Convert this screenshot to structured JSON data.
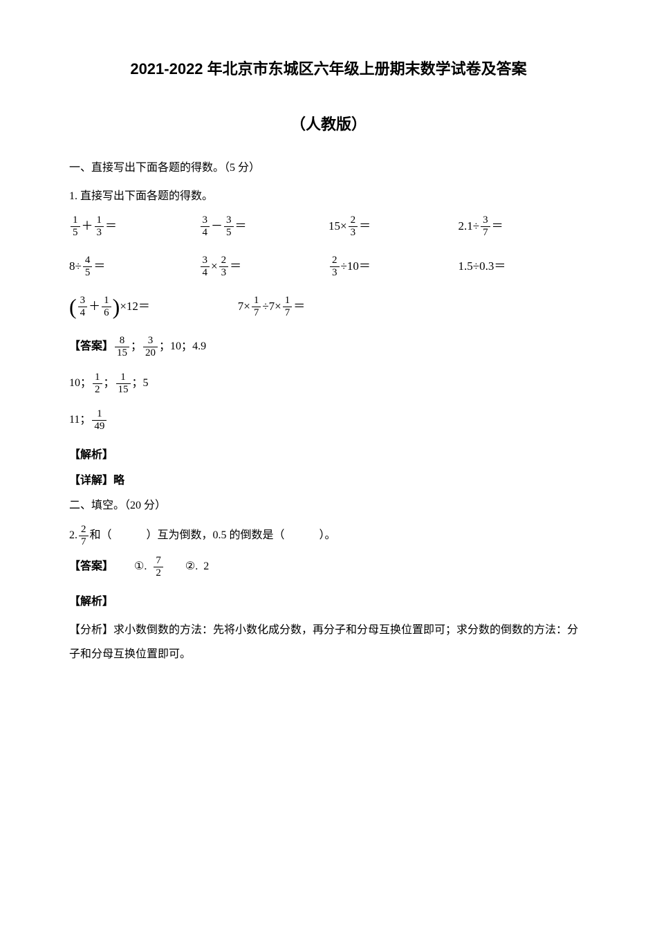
{
  "title": "2021-2022 年北京市东城区六年级上册期末数学试卷及答案",
  "subtitle": "（人教版）",
  "section1": {
    "header": "一、直接写出下面各题的得数。（5 分）",
    "q1": "1. 直接写出下面各题的得数。"
  },
  "equations": {
    "row1": {
      "e1": {
        "f1n": "1",
        "f1d": "5",
        "op": "＋",
        "f2n": "1",
        "f2d": "3",
        "eq": "＝"
      },
      "e2": {
        "f1n": "3",
        "f1d": "4",
        "op": "－",
        "f2n": "3",
        "f2d": "5",
        "eq": "＝"
      },
      "e3": {
        "pre": "15×",
        "f1n": "2",
        "f1d": "3",
        "eq": "＝"
      },
      "e4": {
        "pre": "2.1÷",
        "f1n": "3",
        "f1d": "7",
        "eq": "＝"
      }
    },
    "row2": {
      "e1": {
        "pre": "8÷",
        "f1n": "4",
        "f1d": "5",
        "eq": "＝"
      },
      "e2": {
        "f1n": "3",
        "f1d": "4",
        "op": "×",
        "f2n": "2",
        "f2d": "3",
        "eq": "＝"
      },
      "e3": {
        "f1n": "2",
        "f1d": "3",
        "post": "÷10＝"
      },
      "e4": {
        "text": "1.5÷0.3＝"
      }
    },
    "row3": {
      "e1": {
        "f1n": "3",
        "f1d": "4",
        "op": "＋",
        "f2n": "1",
        "f2d": "6",
        "post": "×12＝"
      },
      "e2": {
        "pre": "7×",
        "f1n": "1",
        "f1d": "7",
        "mid": "÷7×",
        "f2n": "1",
        "f2d": "7",
        "eq": "＝"
      }
    }
  },
  "answers": {
    "label": "【答案】",
    "line1": {
      "f1n": "8",
      "f1d": "15",
      "sep1": "；",
      "f2n": "3",
      "f2d": "20",
      "sep2": "；",
      "v3": "10",
      "sep3": "；",
      "v4": "4.9"
    },
    "line2": {
      "v1": "10",
      "sep1": "；",
      "f1n": "1",
      "f1d": "2",
      "sep2": "；",
      "f2n": "1",
      "f2d": "15",
      "sep3": "；",
      "v4": "5"
    },
    "line3": {
      "v1": "11",
      "sep1": "；",
      "f1n": "1",
      "f1d": "49"
    }
  },
  "analysis": {
    "label": "【解析】",
    "detail": "【详解】略"
  },
  "section2": {
    "header": "二、填空。（20 分）",
    "q2_pre": "2. ",
    "q2_f1n": "2",
    "q2_f1d": "7",
    "q2_mid1": "和（",
    "q2_mid2": "）互为倒数，0.5 的倒数是（",
    "q2_end": "）。"
  },
  "answer2": {
    "label": "【答案】",
    "c1": "①.",
    "f1n": "7",
    "f1d": "2",
    "c2": "②.",
    "v2": "2"
  },
  "analysis2": {
    "label": "【解析】",
    "text": "【分析】求小数倒数的方法：先将小数化成分数，再分子和分母互换位置即可；求分数的倒数的方法：分子和分母互换位置即可。"
  }
}
